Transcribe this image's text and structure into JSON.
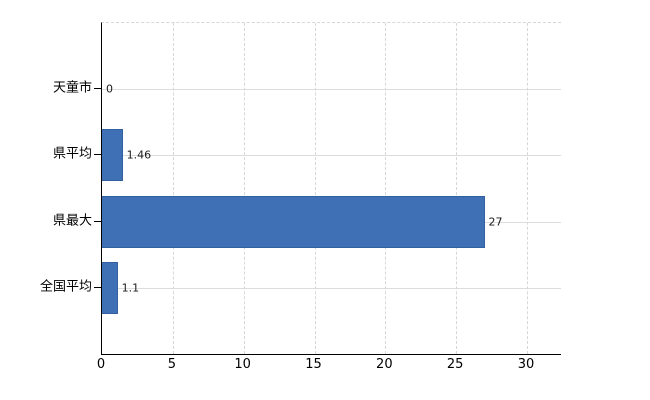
{
  "chart_data": {
    "type": "bar",
    "orientation": "horizontal",
    "title": "",
    "xlabel": "",
    "ylabel": "",
    "categories": [
      "天童市",
      "県平均",
      "県最大",
      "全国平均"
    ],
    "values": [
      0,
      1.46,
      27,
      1.1
    ],
    "value_labels": [
      "0",
      "1.46",
      "27",
      "1.1"
    ],
    "x_ticks": [
      0,
      5,
      10,
      15,
      20,
      25,
      30
    ],
    "x_tick_labels": [
      "0",
      "5",
      "10",
      "15",
      "20",
      "25",
      "30"
    ],
    "xlim": [
      0,
      32.4
    ],
    "legend": "none",
    "grid": {
      "horizontal": "solid",
      "vertical": "dashed"
    },
    "colors": {
      "bar_fill": "#3f6fb4",
      "bar_border": "#33619f",
      "axis": "#000000",
      "gridline_horizontal": "#d9ded9",
      "gridline_vertical": "#d7d7d7",
      "label_text": "#000000",
      "background": "#ffffff"
    }
  }
}
